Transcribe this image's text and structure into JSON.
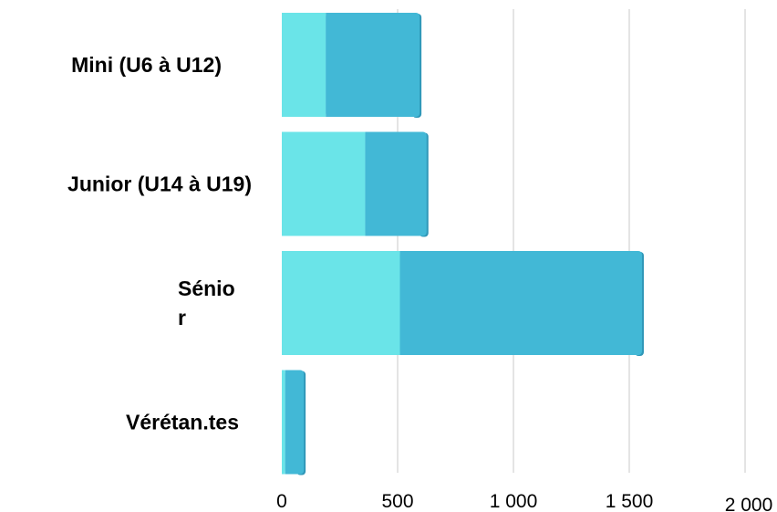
{
  "chart_data": {
    "type": "bar",
    "orientation": "horizontal",
    "stacked": true,
    "categories": [
      "Mini (U6 à U12)",
      "Junior (U14 à U19)",
      "Sénio\nr",
      "Vérétan.tes"
    ],
    "series": [
      {
        "values": [
          190,
          360,
          510,
          15
        ],
        "color": "#6ae4e8"
      },
      {
        "values": [
          405,
          265,
          1045,
          80
        ],
        "color": "#42b8d6"
      }
    ],
    "x_ticks": [
      "0",
      "500",
      "1 000",
      "1 500",
      "2 000"
    ],
    "xlim": [
      0,
      2000
    ],
    "grid": "vertical",
    "legend": "none"
  }
}
